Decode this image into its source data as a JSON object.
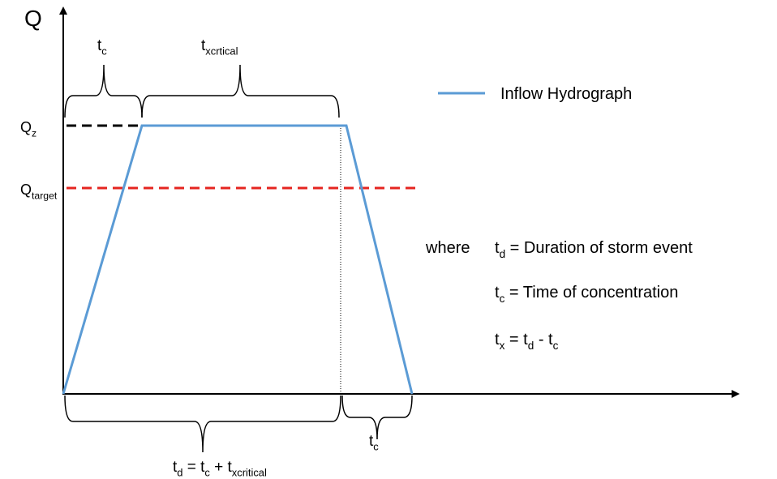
{
  "labels": {
    "y_axis": [
      {
        "text": "Q",
        "sub": false
      }
    ],
    "q_z": [
      {
        "text": "Q",
        "sub": false
      },
      {
        "text": "z",
        "sub": true
      }
    ],
    "q_target": [
      {
        "text": "Q",
        "sub": false
      },
      {
        "text": "target",
        "sub": true
      }
    ],
    "top_tc": [
      {
        "text": "t",
        "sub": false
      },
      {
        "text": "c",
        "sub": true
      }
    ],
    "top_tx": [
      {
        "text": "t",
        "sub": false
      },
      {
        "text": "xcrtical",
        "sub": true
      }
    ],
    "legend": [
      {
        "text": "Inflow Hydrograph",
        "sub": false
      }
    ],
    "bottom_td": [
      {
        "text": "t",
        "sub": false
      },
      {
        "text": "d",
        "sub": true
      },
      {
        "text": " = t",
        "sub": false
      },
      {
        "text": "c",
        "sub": true
      },
      {
        "text": " + t",
        "sub": false
      },
      {
        "text": "xcritical",
        "sub": true
      }
    ],
    "bottom_tc": [
      {
        "text": "t",
        "sub": false
      },
      {
        "text": "c",
        "sub": true
      }
    ],
    "where": [
      {
        "text": "where",
        "sub": false
      }
    ],
    "def_td": [
      {
        "text": "t",
        "sub": false
      },
      {
        "text": "d",
        "sub": true
      },
      {
        "text": " = Duration of storm event",
        "sub": false
      }
    ],
    "def_tc": [
      {
        "text": "t",
        "sub": false
      },
      {
        "text": "c",
        "sub": true
      },
      {
        "text": " = Time of concentration",
        "sub": false
      }
    ],
    "def_tx": [
      {
        "text": "t",
        "sub": false
      },
      {
        "text": "x",
        "sub": true
      },
      {
        "text": " = t",
        "sub": false
      },
      {
        "text": "d",
        "sub": true
      },
      {
        "text": " - t",
        "sub": false
      },
      {
        "text": "c",
        "sub": true
      }
    ]
  }
}
